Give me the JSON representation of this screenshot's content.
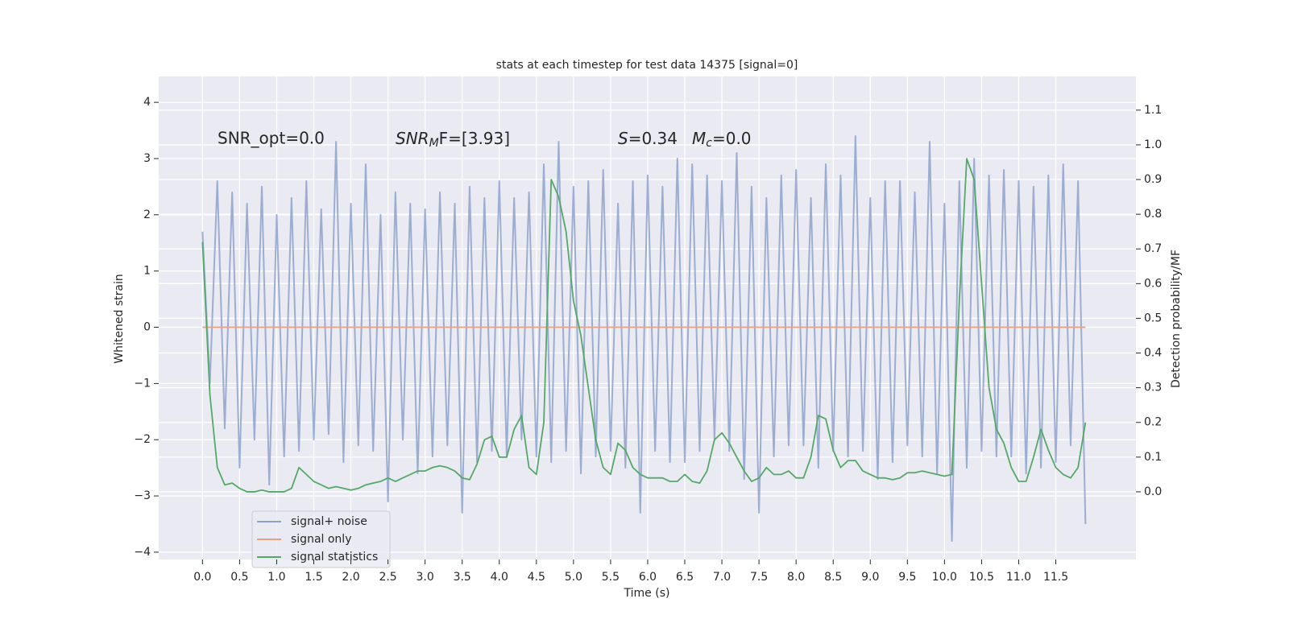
{
  "chart_data": {
    "type": "line",
    "title": "stats at each timestep for test data 14375 [signal=0]",
    "x_label": "Time (s)",
    "y_label": "Whitened strain",
    "y2_label": "Detection probability/MF",
    "annotations": [
      "SNR_opt=0.0",
      {
        "base": "SNR",
        "sub": "M",
        "tail": "F=[3.93]"
      },
      {
        "base": "S",
        "tail": "=0.34"
      },
      {
        "base": "M",
        "sub": "c",
        "tail": "=0.0"
      }
    ],
    "x": [
      0.0,
      0.1,
      0.2,
      0.3,
      0.4,
      0.5,
      0.6,
      0.7,
      0.8,
      0.9,
      1.0,
      1.1,
      1.2,
      1.3,
      1.4,
      1.5,
      1.6,
      1.7,
      1.8,
      1.9,
      2.0,
      2.1,
      2.2,
      2.3,
      2.4,
      2.5,
      2.6,
      2.7,
      2.8,
      2.9,
      3.0,
      3.1,
      3.2,
      3.3,
      3.4,
      3.5,
      3.6,
      3.7,
      3.8,
      3.9,
      4.0,
      4.1,
      4.2,
      4.3,
      4.4,
      4.5,
      4.6,
      4.7,
      4.8,
      4.9,
      5.0,
      5.1,
      5.2,
      5.3,
      5.4,
      5.5,
      5.6,
      5.7,
      5.8,
      5.9,
      6.0,
      6.1,
      6.2,
      6.3,
      6.4,
      6.5,
      6.6,
      6.7,
      6.8,
      6.9,
      7.0,
      7.1,
      7.2,
      7.3,
      7.4,
      7.5,
      7.6,
      7.7,
      7.8,
      7.9,
      8.0,
      8.1,
      8.2,
      8.3,
      8.4,
      8.5,
      8.6,
      8.7,
      8.8,
      8.9,
      9.0,
      9.1,
      9.2,
      9.3,
      9.4,
      9.5,
      9.6,
      9.7,
      9.8,
      9.9,
      10.0,
      10.1,
      10.2,
      10.3,
      10.4,
      10.5,
      10.6,
      10.7,
      10.8,
      10.9,
      11.0,
      11.1,
      11.2,
      11.3,
      11.4,
      11.5,
      11.6,
      11.7,
      11.8,
      11.9
    ],
    "series": [
      {
        "name": "signal+ noise",
        "color": "#8ea2cc",
        "values": [
          1.7,
          -1.0,
          2.6,
          -1.8,
          2.4,
          -2.5,
          2.2,
          -2.0,
          2.5,
          -2.8,
          2.0,
          -2.3,
          2.3,
          -2.2,
          2.6,
          -2.0,
          2.1,
          -1.9,
          3.3,
          -2.4,
          2.2,
          -2.1,
          2.9,
          -2.2,
          2.0,
          -3.1,
          2.4,
          -2.0,
          2.2,
          -2.6,
          2.1,
          -2.3,
          2.4,
          -2.1,
          2.2,
          -3.3,
          2.5,
          -2.4,
          2.3,
          -2.2,
          2.6,
          -2.3,
          2.3,
          -2.0,
          2.4,
          -2.3,
          2.9,
          -2.4,
          3.3,
          -2.2,
          2.5,
          -2.6,
          2.6,
          -2.3,
          2.8,
          -2.2,
          2.2,
          -2.5,
          2.6,
          -3.3,
          2.7,
          -2.2,
          2.5,
          -2.4,
          3.0,
          -2.4,
          2.9,
          -2.2,
          2.7,
          -2.0,
          2.6,
          -2.2,
          3.1,
          -2.7,
          2.5,
          -3.3,
          2.3,
          -2.3,
          2.7,
          -2.1,
          2.8,
          -2.1,
          2.3,
          -2.5,
          2.9,
          -2.2,
          2.7,
          -2.3,
          3.4,
          -2.2,
          2.3,
          -2.7,
          2.6,
          -2.4,
          2.6,
          -2.1,
          2.4,
          -2.3,
          3.3,
          -2.6,
          2.2,
          -3.8,
          2.6,
          -2.5,
          3.0,
          -2.2,
          2.7,
          -2.3,
          2.8,
          -2.3,
          2.6,
          -2.6,
          2.5,
          -2.5,
          2.7,
          -2.4,
          2.9,
          -2.1,
          2.6,
          -3.5
        ]
      },
      {
        "name": "signal only",
        "color": "#e8a283",
        "values": [
          0,
          0,
          0,
          0,
          0,
          0,
          0,
          0,
          0,
          0,
          0,
          0,
          0,
          0,
          0,
          0,
          0,
          0,
          0,
          0,
          0,
          0,
          0,
          0,
          0,
          0,
          0,
          0,
          0,
          0,
          0,
          0,
          0,
          0,
          0,
          0,
          0,
          0,
          0,
          0,
          0,
          0,
          0,
          0,
          0,
          0,
          0,
          0,
          0,
          0,
          0,
          0,
          0,
          0,
          0,
          0,
          0,
          0,
          0,
          0,
          0,
          0,
          0,
          0,
          0,
          0,
          0,
          0,
          0,
          0,
          0,
          0,
          0,
          0,
          0,
          0,
          0,
          0,
          0,
          0,
          0,
          0,
          0,
          0,
          0,
          0,
          0,
          0,
          0,
          0,
          0,
          0,
          0,
          0,
          0,
          0,
          0,
          0,
          0,
          0,
          0,
          0,
          0,
          0,
          0,
          0,
          0,
          0,
          0,
          0,
          0,
          0,
          0,
          0,
          0,
          0,
          0,
          0,
          0,
          0
        ]
      },
      {
        "name": "signal statistics",
        "color": "#55a868",
        "axis": "y2",
        "values": [
          0.72,
          0.28,
          0.07,
          0.02,
          0.025,
          0.01,
          0.0,
          0.0,
          0.005,
          0.0,
          0.0,
          0.0,
          0.01,
          0.07,
          0.05,
          0.03,
          0.02,
          0.01,
          0.015,
          0.01,
          0.005,
          0.01,
          0.02,
          0.025,
          0.03,
          0.04,
          0.03,
          0.04,
          0.05,
          0.06,
          0.06,
          0.07,
          0.075,
          0.07,
          0.06,
          0.04,
          0.035,
          0.08,
          0.15,
          0.16,
          0.1,
          0.1,
          0.18,
          0.22,
          0.07,
          0.05,
          0.2,
          0.9,
          0.85,
          0.75,
          0.55,
          0.45,
          0.3,
          0.15,
          0.07,
          0.05,
          0.14,
          0.12,
          0.07,
          0.05,
          0.04,
          0.04,
          0.04,
          0.03,
          0.03,
          0.05,
          0.03,
          0.025,
          0.06,
          0.15,
          0.17,
          0.14,
          0.1,
          0.06,
          0.03,
          0.04,
          0.07,
          0.05,
          0.05,
          0.06,
          0.04,
          0.04,
          0.1,
          0.22,
          0.21,
          0.12,
          0.07,
          0.09,
          0.09,
          0.06,
          0.05,
          0.04,
          0.04,
          0.035,
          0.04,
          0.055,
          0.055,
          0.06,
          0.055,
          0.05,
          0.045,
          0.05,
          0.55,
          0.96,
          0.9,
          0.6,
          0.3,
          0.18,
          0.14,
          0.07,
          0.03,
          0.03,
          0.1,
          0.18,
          0.12,
          0.07,
          0.05,
          0.04,
          0.07,
          0.2
        ]
      }
    ],
    "xlim": [
      -0.59,
      12.58
    ],
    "ylim": [
      -4.13,
      4.46
    ],
    "y2lim": [
      -0.195,
      1.197
    ],
    "xticks": [
      {
        "value": 0,
        "label": "0.0"
      },
      0.5,
      {
        "value": 1,
        "label": "1.0"
      },
      1.5,
      {
        "value": 2,
        "label": "2.0"
      },
      2.5,
      {
        "value": 3,
        "label": "3.0"
      },
      3.5,
      {
        "value": 4,
        "label": "4.0"
      },
      4.5,
      {
        "value": 5,
        "label": "5.0"
      },
      5.5,
      {
        "value": 6,
        "label": "6.0"
      },
      6.5,
      {
        "value": 7,
        "label": "7.0"
      },
      7.5,
      {
        "value": 8,
        "label": "8.0"
      },
      8.5,
      {
        "value": 9,
        "label": "9.0"
      },
      9.5,
      {
        "value": 10,
        "label": "10.0"
      },
      10.5,
      {
        "value": 11,
        "label": "11.0"
      },
      11.5
    ],
    "yticks": [
      {
        "value": -4,
        "label": "−4"
      },
      {
        "value": -3,
        "label": "−3"
      },
      {
        "value": -2,
        "label": "−2"
      },
      {
        "value": -1,
        "label": "−1"
      },
      0,
      1,
      2,
      3,
      4
    ],
    "y2ticks": [
      {
        "value": 0,
        "label": "0.0"
      },
      0.1,
      0.2,
      0.3,
      0.4,
      0.5,
      0.6,
      0.7,
      0.8,
      0.9,
      {
        "value": 1,
        "label": "1.0"
      },
      1.1
    ],
    "grid": true,
    "legend": "lower left"
  }
}
